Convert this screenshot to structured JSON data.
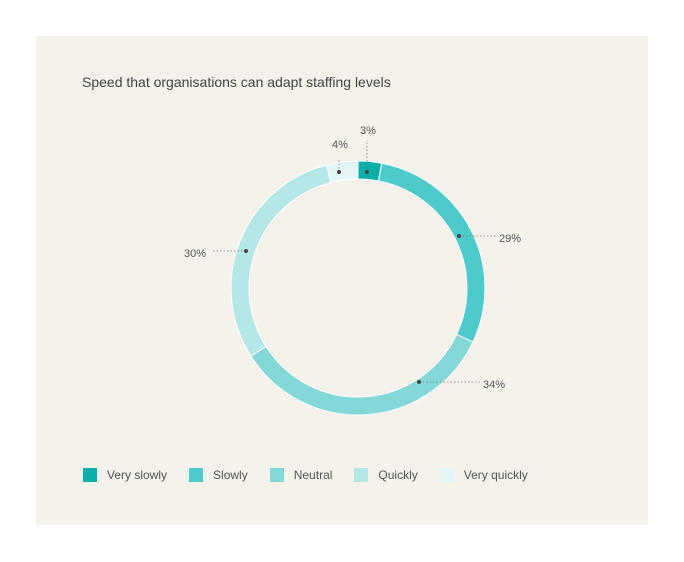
{
  "chart_data": {
    "type": "pie",
    "title": "Speed that organisations can adapt staffing levels",
    "categories": [
      "Very slowly",
      "Slowly",
      "Neutral",
      "Quickly",
      "Very quickly"
    ],
    "values": [
      3,
      29,
      34,
      30,
      4
    ],
    "labels": [
      "3%",
      "29%",
      "34%",
      "30%",
      "4%"
    ],
    "colors": [
      "#0aaea8",
      "#4ecaca",
      "#84d9d8",
      "#b5e7e6",
      "#e3f5f4"
    ],
    "donut": true,
    "legend_position": "bottom-left"
  }
}
